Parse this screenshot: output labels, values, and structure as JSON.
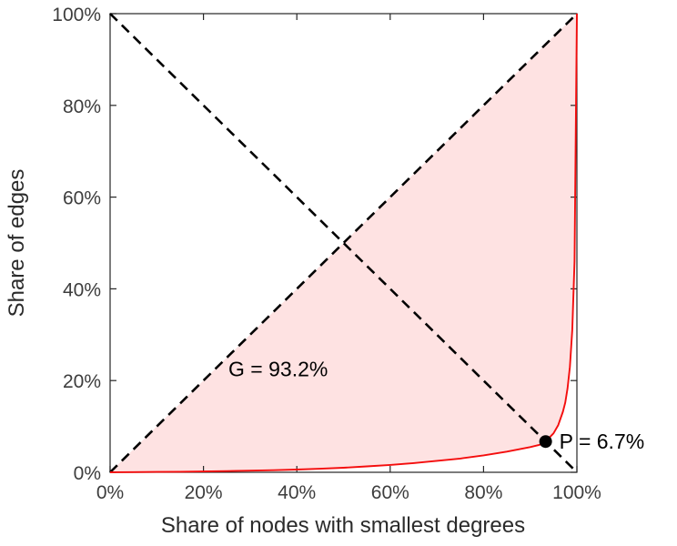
{
  "chart_data": {
    "type": "line",
    "title": "",
    "xlabel": "Share of nodes with smallest degrees",
    "ylabel": "Share of edges",
    "xlim": [
      0,
      1
    ],
    "ylim": [
      0,
      1
    ],
    "grid": false,
    "legend": "none",
    "x_ticks": [
      0,
      0.2,
      0.4,
      0.6,
      0.8,
      1.0
    ],
    "y_ticks": [
      0,
      0.2,
      0.4,
      0.6,
      0.8,
      1.0
    ],
    "x_tick_labels": [
      "0%",
      "20%",
      "40%",
      "60%",
      "80%",
      "100%"
    ],
    "y_tick_labels": [
      "0%",
      "20%",
      "40%",
      "60%",
      "80%",
      "100%"
    ],
    "colors": {
      "curve": "#f40d0d",
      "area_fill": "rgba(244,13,13,0.12)",
      "reference": "#000000",
      "axes": "#262626",
      "marker": "#000000"
    },
    "series": [
      {
        "name": "lorenz-curve",
        "x": [
          0,
          0.05,
          0.1,
          0.15,
          0.2,
          0.25,
          0.3,
          0.35,
          0.4,
          0.45,
          0.5,
          0.55,
          0.6,
          0.65,
          0.7,
          0.75,
          0.8,
          0.85,
          0.9,
          0.92,
          0.933,
          0.95,
          0.96,
          0.97,
          0.975,
          0.98,
          0.985,
          0.99,
          0.995,
          1
        ],
        "y": [
          0,
          0.0003,
          0.0007,
          0.0012,
          0.0018,
          0.0026,
          0.0035,
          0.0046,
          0.006,
          0.0078,
          0.01,
          0.0128,
          0.016,
          0.02,
          0.025,
          0.03,
          0.037,
          0.045,
          0.055,
          0.06,
          0.067,
          0.085,
          0.103,
          0.132,
          0.152,
          0.183,
          0.23,
          0.31,
          0.46,
          1
        ]
      }
    ],
    "reference_lines": [
      {
        "name": "equality-diagonal",
        "from": [
          0,
          0
        ],
        "to": [
          1,
          1
        ],
        "style": "dashed"
      },
      {
        "name": "anti-diagonal",
        "from": [
          0,
          1
        ],
        "to": [
          1,
          0
        ],
        "style": "dashed"
      }
    ],
    "annotations": [
      {
        "name": "gini-label",
        "text": "G = 93.2%",
        "x": 0.36,
        "y": 0.225
      },
      {
        "name": "p-label",
        "text": "P = 6.7%",
        "x": 0.933,
        "y": 0.067,
        "marker": "dot"
      }
    ],
    "gini_percent": 93.2,
    "pearson_point_percent": 6.7
  }
}
